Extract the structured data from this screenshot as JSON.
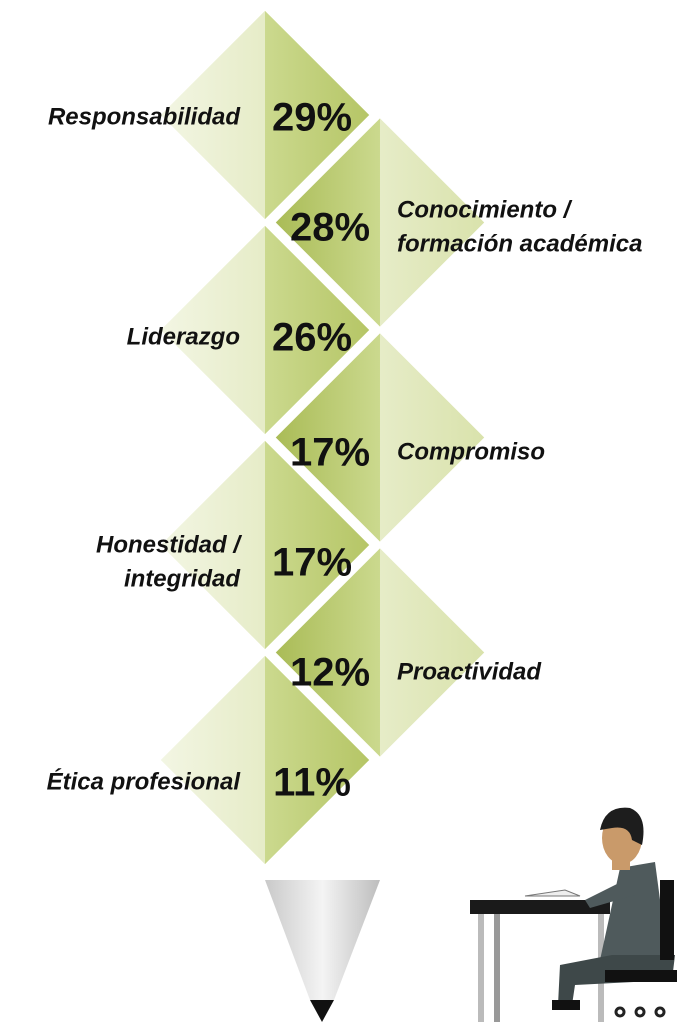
{
  "items": [
    {
      "label": [
        "Responsabilidad"
      ],
      "value": "29%"
    },
    {
      "label": [
        "Conocimiento /",
        "formación académica"
      ],
      "value": "28%"
    },
    {
      "label": [
        "Liderazgo"
      ],
      "value": "26%"
    },
    {
      "label": [
        "Compromiso"
      ],
      "value": "17%"
    },
    {
      "label": [
        "Honestidad /",
        "integridad"
      ],
      "value": "17%"
    },
    {
      "label": [
        "Proactividad"
      ],
      "value": "12%"
    },
    {
      "label": [
        "Ética profesional"
      ],
      "value": "11%"
    }
  ]
}
